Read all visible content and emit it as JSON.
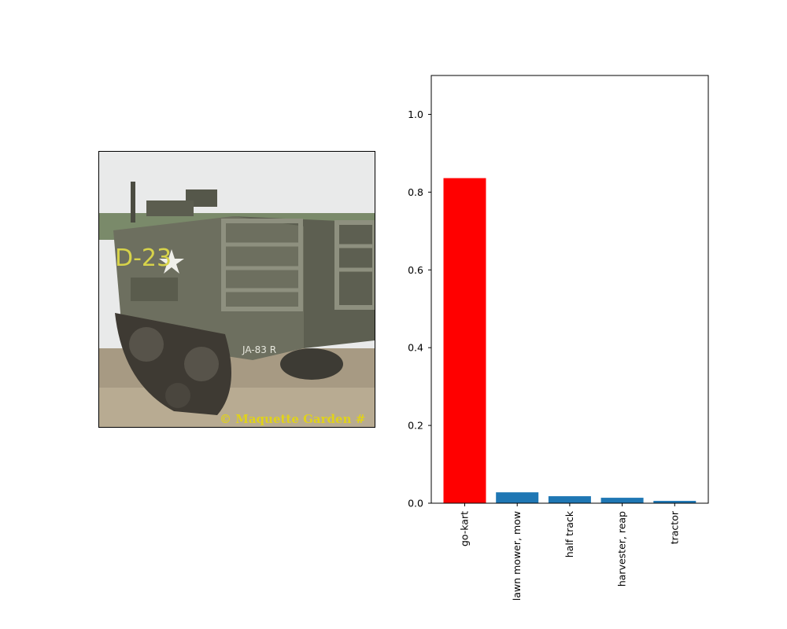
{
  "photo": {
    "subject": "half-track military vehicle",
    "markings": [
      "D-23",
      "JA-83 R"
    ],
    "watermark": "© Maquette Garden #"
  },
  "chart_data": {
    "type": "bar",
    "categories": [
      "go-kart",
      "lawn mower, mow",
      "half track",
      "harvester, reap",
      "tractor"
    ],
    "values": [
      0.836,
      0.028,
      0.018,
      0.014,
      0.006
    ],
    "highlight_index": 0,
    "colors": {
      "highlight": "#ff0000",
      "default": "#1f77b4"
    },
    "ylim": [
      0,
      1.1
    ],
    "yticks": [
      "0.0",
      "0.2",
      "0.4",
      "0.6",
      "0.8",
      "1.0"
    ],
    "ytick_values": [
      0,
      0.2,
      0.4,
      0.6,
      0.8,
      1.0
    ],
    "grid": false,
    "title": "",
    "xlabel": "",
    "ylabel": ""
  }
}
